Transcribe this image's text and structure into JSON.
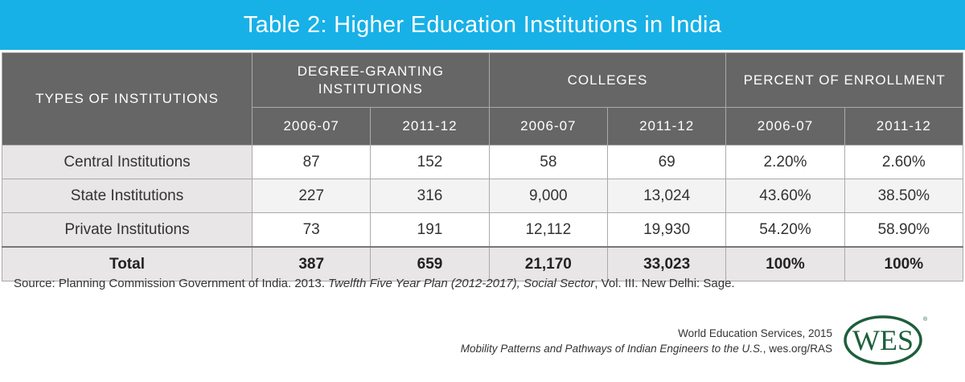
{
  "title": "Table 2: Higher Education Institutions in India",
  "table": {
    "col_group_headers": [
      "TYPES OF INSTITUTIONS",
      "DEGREE-GRANTING INSTITUTIONS",
      "COLLEGES",
      "PERCENT OF ENROLLMENT"
    ],
    "year_headers": [
      "2006-07",
      "2011-12",
      "2006-07",
      "2011-12",
      "2006-07",
      "2011-12"
    ],
    "rows": [
      {
        "label": "Central Institutions",
        "values": [
          "87",
          "152",
          "58",
          "69",
          "2.20%",
          "2.60%"
        ]
      },
      {
        "label": "State Institutions",
        "values": [
          "227",
          "316",
          "9,000",
          "13,024",
          "43.60%",
          "38.50%"
        ]
      },
      {
        "label": "Private Institutions",
        "values": [
          "73",
          "191",
          "12,112",
          "19,930",
          "54.20%",
          "58.90%"
        ]
      }
    ],
    "total": {
      "label": "Total",
      "values": [
        "387",
        "659",
        "21,170",
        "33,023",
        "100%",
        "100%"
      ]
    }
  },
  "source": {
    "prefix": "Source: Planning Commission Government of India. 2013. ",
    "italic": "Twelfth Five Year Plan (2012-2017), Social Sector",
    "suffix": ", Vol. III. New Delhi: Sage."
  },
  "credit": {
    "line1": "World Education Services, 2015",
    "line2_italic": "Mobility Patterns and Pathways of Indian Engineers to the U.S.",
    "line2_suffix": ", wes.org/RAS"
  },
  "logo": {
    "text": "WES",
    "color": "#1e5e3c"
  }
}
